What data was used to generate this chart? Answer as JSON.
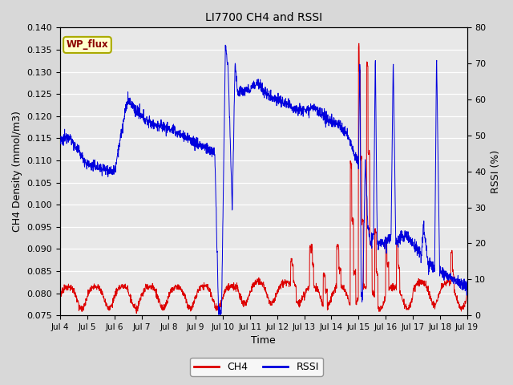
{
  "title": "LI7700 CH4 and RSSI",
  "xlabel": "Time",
  "ylabel_left": "CH4 Density (mmol/m3)",
  "ylabel_right": "RSSI (%)",
  "annotation": "WP_flux",
  "ylim_left": [
    0.075,
    0.14
  ],
  "ylim_right": [
    0,
    80
  ],
  "yticks_left": [
    0.075,
    0.08,
    0.085,
    0.09,
    0.095,
    0.1,
    0.105,
    0.11,
    0.115,
    0.12,
    0.125,
    0.13,
    0.135,
    0.14
  ],
  "yticks_right": [
    0,
    10,
    20,
    30,
    40,
    50,
    60,
    70,
    80
  ],
  "ch4_color": "#dd0000",
  "rssi_color": "#0000dd",
  "fig_bg_color": "#d8d8d8",
  "plot_bg_color": "#e8e8e8",
  "legend_ch4": "CH4",
  "legend_rssi": "RSSI",
  "x_day_labels": [
    "Jul 4",
    "Jul 5",
    "Jul 6",
    "Jul 7",
    "Jul 8",
    "Jul 9",
    "Jul 10",
    "Jul 11",
    "Jul 12",
    "Jul 13",
    "Jul 14",
    "Jul 15",
    "Jul 16",
    "Jul 17",
    "Jul 18",
    "Jul 19"
  ],
  "n_points": 2000
}
